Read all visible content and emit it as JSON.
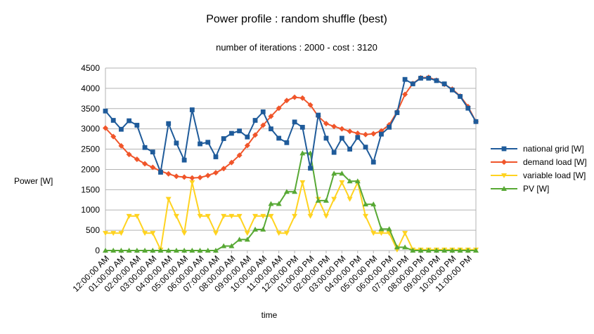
{
  "chart_data": {
    "type": "line",
    "title": "Power profile : random shuffle (best)",
    "subtitle": "number of iterations : 2000 - cost : 3120",
    "xlabel": "time",
    "ylabel": "Power [W]",
    "ylim": [
      0,
      4500
    ],
    "y_ticks": [
      0,
      500,
      1000,
      1500,
      2000,
      2500,
      3000,
      3500,
      4000,
      4500
    ],
    "grid": true,
    "legend_position": "right",
    "x_tick_labels": [
      "12:00:00 AM",
      "01:00:00 AM",
      "02:00:00 AM",
      "03:00:00 AM",
      "04:00:00 AM",
      "05:00:00 AM",
      "06:00:00 AM",
      "07:00:00 AM",
      "08:00:00 AM",
      "09:00:00 AM",
      "10:00:00 AM",
      "11:00:00 AM",
      "12:00:00 PM",
      "01:00:00 PM",
      "02:00:00 PM",
      "03:00:00 PM",
      "04:00:00 PM",
      "05:00:00 PM",
      "06:00:00 PM",
      "07:00:00 PM",
      "08:00:00 PM",
      "09:00:00 PM",
      "10:00:00 PM",
      "11:00:00 PM"
    ],
    "series": [
      {
        "name": "national grid [W]",
        "color": "#1f5b9a",
        "marker": "square",
        "values": [
          3440,
          3210,
          2990,
          3200,
          3090,
          2540,
          2430,
          1930,
          3130,
          2650,
          2230,
          3470,
          2630,
          2670,
          2310,
          2760,
          2890,
          2950,
          2800,
          3210,
          3420,
          3000,
          2770,
          2660,
          3170,
          3040,
          2030,
          3340,
          2770,
          2420,
          2770,
          2500,
          2790,
          2550,
          2180,
          2870,
          3040,
          3400,
          4220,
          4110,
          4250,
          4250,
          4190,
          4110,
          3960,
          3800,
          3510,
          3180
        ]
      },
      {
        "name": "demand load [W]",
        "color": "#f0552a",
        "marker": "diamond",
        "values": [
          3020,
          2810,
          2580,
          2370,
          2250,
          2140,
          2050,
          1960,
          1890,
          1830,
          1810,
          1790,
          1800,
          1850,
          1920,
          2020,
          2170,
          2350,
          2590,
          2850,
          3090,
          3310,
          3510,
          3700,
          3780,
          3760,
          3590,
          3310,
          3130,
          3060,
          3000,
          2940,
          2890,
          2860,
          2880,
          2950,
          3100,
          3420,
          3850,
          4120,
          4260,
          4270,
          4200,
          4100,
          3980,
          3810,
          3550,
          3180
        ]
      },
      {
        "name": "variable load [W]",
        "color": "#ffd320",
        "marker": "triangle-down",
        "values": [
          430,
          430,
          430,
          850,
          850,
          430,
          430,
          20,
          1270,
          850,
          430,
          1680,
          850,
          850,
          430,
          850,
          850,
          850,
          430,
          850,
          850,
          850,
          430,
          430,
          850,
          1680,
          850,
          1270,
          850,
          1270,
          1680,
          1270,
          1680,
          850,
          430,
          430,
          430,
          20,
          430,
          20,
          20,
          20,
          20,
          20,
          20,
          20,
          20,
          20
        ]
      },
      {
        "name": "PV [W]",
        "color": "#57a834",
        "marker": "triangle-up",
        "values": [
          0,
          0,
          0,
          0,
          0,
          0,
          0,
          0,
          0,
          0,
          0,
          0,
          0,
          0,
          0,
          110,
          110,
          270,
          270,
          520,
          520,
          1150,
          1150,
          1450,
          1450,
          2400,
          2400,
          1230,
          1230,
          1900,
          1900,
          1710,
          1710,
          1140,
          1140,
          530,
          530,
          80,
          80,
          0,
          0,
          0,
          0,
          0,
          0,
          0,
          0,
          0
        ]
      }
    ]
  }
}
